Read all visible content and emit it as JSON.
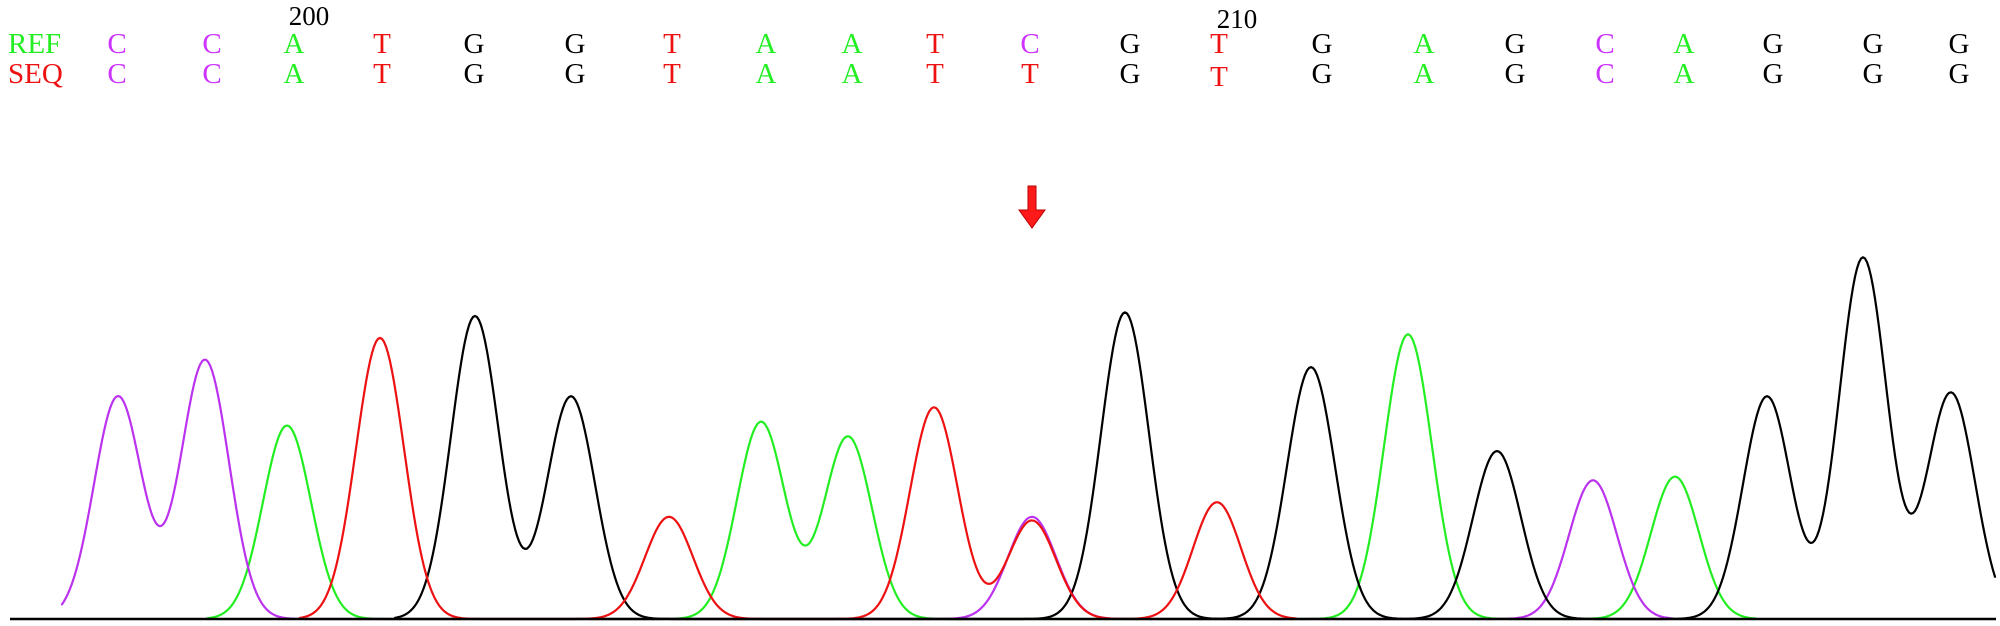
{
  "alignment": {
    "ref_label": "REF",
    "seq_label": "SEQ",
    "ref_bases": [
      "C",
      "C",
      "A",
      "T",
      "G",
      "G",
      "T",
      "A",
      "A",
      "T",
      "C",
      "G",
      "T",
      "G",
      "A",
      "G",
      "C",
      "A",
      "G",
      "G",
      "G"
    ],
    "seq_bases": [
      "C",
      "C",
      "A",
      "T",
      "G",
      "G",
      "T",
      "A",
      "A",
      "T",
      "T",
      "G",
      "T",
      "G",
      "A",
      "G",
      "C",
      "A",
      "G",
      "G",
      "G"
    ],
    "position_markers": [
      {
        "label": "200",
        "base_index": 2
      },
      {
        "label": "210",
        "base_index": 12
      }
    ],
    "variant_index": 10
  },
  "colors": {
    "ref_label": "#22ee22",
    "seq_label": "#ee1111",
    "A": "#22ee22",
    "C": "#cc33ff",
    "G": "#000000",
    "T": "#ee1111",
    "arrow": "#ff1a1a",
    "trace_A": "#22ee22",
    "trace_C": "#bb33ee",
    "trace_G": "#000000",
    "trace_T": "#ee1111"
  },
  "markers": {
    "variant_arrow_icon": "down-arrow-icon"
  },
  "chart_data": {
    "type": "line",
    "series": [
      {
        "name": "A",
        "peaks": [
          {
            "base_index": 2,
            "height": 0.53
          },
          {
            "base_index": 7,
            "height": 0.54
          },
          {
            "base_index": 8,
            "height": 0.5
          },
          {
            "base_index": 14,
            "height": 0.78
          },
          {
            "base_index": 17,
            "height": 0.39
          }
        ]
      },
      {
        "name": "C",
        "peaks": [
          {
            "base_index": 0,
            "height": 0.61
          },
          {
            "base_index": 1,
            "height": 0.71
          },
          {
            "base_index": 10,
            "height": 0.28
          },
          {
            "base_index": 16,
            "height": 0.38
          }
        ]
      },
      {
        "name": "G",
        "peaks": [
          {
            "base_index": 4,
            "height": 0.83
          },
          {
            "base_index": 5,
            "height": 0.61
          },
          {
            "base_index": 11,
            "height": 0.84
          },
          {
            "base_index": 13,
            "height": 0.69
          },
          {
            "base_index": 15,
            "height": 0.46
          },
          {
            "base_index": 18,
            "height": 0.61
          },
          {
            "base_index": 19,
            "height": 0.99
          },
          {
            "base_index": 20,
            "height": 0.62
          }
        ]
      },
      {
        "name": "T",
        "peaks": [
          {
            "base_index": 3,
            "height": 0.77
          },
          {
            "base_index": 6,
            "height": 0.28
          },
          {
            "base_index": 9,
            "height": 0.58
          },
          {
            "base_index": 10,
            "height": 0.27
          },
          {
            "base_index": 12,
            "height": 0.32
          }
        ]
      }
    ]
  }
}
